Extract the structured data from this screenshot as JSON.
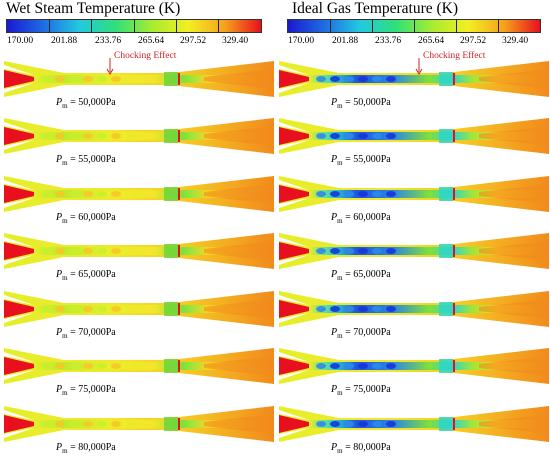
{
  "colors": {
    "red": "#e8101e",
    "orange": "#f28a1c",
    "yellow": "#e4ef2a",
    "green": "#6cd63a",
    "cyan": "#2fd6c8",
    "blue": "#1c4fe0",
    "annotation": "#d42020"
  },
  "colormap": [
    "#1a1ad0",
    "#1f6be3",
    "#22c9e0",
    "#2fe07a",
    "#a6ec30",
    "#f3ef22",
    "#f6a21b",
    "#e8101e"
  ],
  "colorbar_ticks": [
    "170.00",
    "201.88",
    "233.76",
    "265.64",
    "297.52",
    "329.40"
  ],
  "columns": [
    {
      "id": "wet",
      "title": "Wet Steam Temperature (K)",
      "annotation": "Chocking Effect",
      "panels": [
        {
          "symbol": "P",
          "subscript": "m",
          "eq": " = 50,000Pa"
        },
        {
          "symbol": "P",
          "subscript": "m",
          "eq": " = 55,000Pa"
        },
        {
          "symbol": "P",
          "subscript": "m",
          "eq": " = 60,000Pa"
        },
        {
          "symbol": "P",
          "subscript": "m",
          "eq": " = 65,000Pa"
        },
        {
          "symbol": "P",
          "subscript": "m",
          "eq": " = 70,000Pa"
        },
        {
          "symbol": "P",
          "subscript": "m",
          "eq": " = 75,000Pa"
        },
        {
          "symbol": "P",
          "subscript": "m",
          "eq": " = 80,000Pa"
        }
      ]
    },
    {
      "id": "ideal",
      "title": "Ideal Gas Temperature (K)",
      "annotation": "Chocking Effect",
      "panels": [
        {
          "symbol": "P",
          "subscript": "m",
          "eq": " = 50,000Pa"
        },
        {
          "symbol": "P",
          "subscript": "m",
          "eq": " = 55,000Pa"
        },
        {
          "symbol": "P",
          "subscript": "m",
          "eq": " = 60,000Pa"
        },
        {
          "symbol": "P",
          "subscript": "m",
          "eq": " = 65,000Pa"
        },
        {
          "symbol": "P",
          "subscript": "m",
          "eq": " = 70,000Pa"
        },
        {
          "symbol": "P",
          "subscript": "m",
          "eq": " = 75,000Pa"
        },
        {
          "symbol": "P",
          "subscript": "m",
          "eq": " = 80,000Pa"
        }
      ]
    }
  ]
}
